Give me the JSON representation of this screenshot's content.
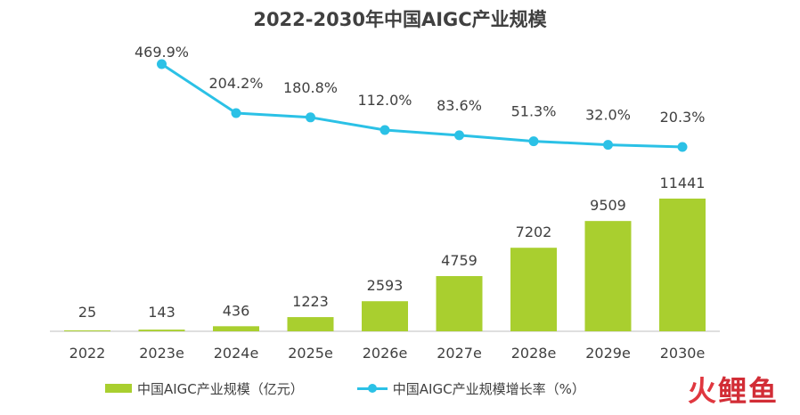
{
  "chart_data": {
    "type": "bar+line",
    "title": "2022-2030年中国AIGC产业规模",
    "categories": [
      "2022",
      "2023e",
      "2024e",
      "2025e",
      "2026e",
      "2027e",
      "2028e",
      "2029e",
      "2030e"
    ],
    "series": [
      {
        "name": "中国AIGC产业规模（亿元）",
        "type": "bar",
        "color": "#a9cf2f",
        "values": [
          25,
          143,
          436,
          1223,
          2593,
          4759,
          7202,
          9509,
          11441
        ],
        "labels": [
          "25",
          "143",
          "436",
          "1223",
          "2593",
          "4759",
          "7202",
          "9509",
          "11441"
        ]
      },
      {
        "name": "中国AIGC产业规模增长率（%）",
        "type": "line",
        "color": "#2bc1e6",
        "values": [
          null,
          469.9,
          204.2,
          180.8,
          112.0,
          83.6,
          51.3,
          32.0,
          20.3
        ],
        "labels": [
          "",
          "469.9%",
          "204.2%",
          "180.8%",
          "112.0%",
          "83.6%",
          "51.3%",
          "32.0%",
          "20.3%"
        ]
      }
    ],
    "xlabel": "",
    "ylabel": "",
    "grid": false,
    "legend_position": "bottom-left"
  },
  "watermark": {
    "text_1": "火",
    "text_2": "鲤鱼"
  }
}
